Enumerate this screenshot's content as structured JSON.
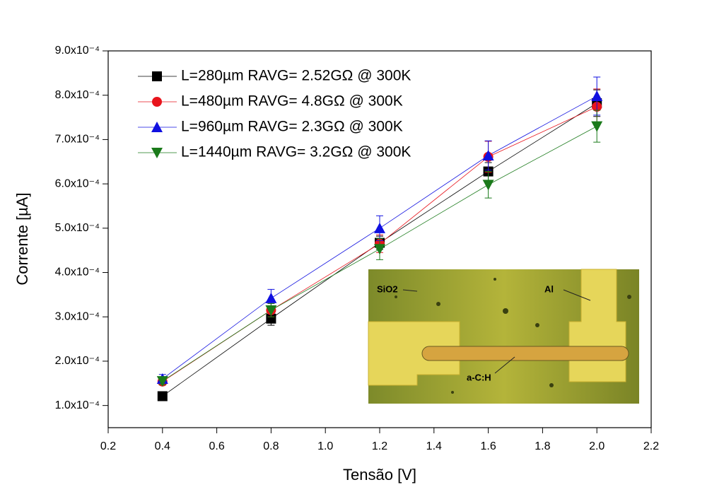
{
  "chart_data": {
    "type": "line",
    "xlabel": "Tensão [V]",
    "ylabel": "Corrente [µA]",
    "xlim": [
      0.2,
      2.2
    ],
    "xticks": [
      0.2,
      0.4,
      0.6,
      0.8,
      {
        "value": 1.0,
        "label": "1.0"
      },
      1.2,
      1.4,
      1.6,
      1.8,
      {
        "value": 2.0,
        "label": "2.0"
      },
      2.2
    ],
    "ylim": [
      5e-05,
      0.0009
    ],
    "yticks": [
      {
        "value": 0.0001,
        "label": "1.0x10⁻⁴"
      },
      {
        "value": 0.0002,
        "label": "2.0x10⁻⁴"
      },
      {
        "value": 0.0003,
        "label": "3.0x10⁻⁴"
      },
      {
        "value": 0.0004,
        "label": "4.0x10⁻⁴"
      },
      {
        "value": 0.0005,
        "label": "5.0x10⁻⁴"
      },
      {
        "value": 0.0006,
        "label": "6.0x10⁻⁴"
      },
      {
        "value": 0.0007,
        "label": "7.0x10⁻⁴"
      },
      {
        "value": 0.0008,
        "label": "8.0x10⁻⁴"
      },
      {
        "value": 0.0009,
        "label": "9.0x10⁻⁴"
      }
    ],
    "x": [
      0.4,
      0.8,
      1.2,
      1.6,
      2.0
    ],
    "legend": "upper left",
    "series": [
      {
        "name": "L=280µm RAVG= 2.52GΩ @ 300K",
        "color": "#000000",
        "marker": "square",
        "values": [
          0.000121,
          0.000296,
          0.000467,
          0.000628,
          0.000782
        ],
        "errors": [
          5e-06,
          1.5e-05,
          1.5e-05,
          2e-05,
          3e-05
        ]
      },
      {
        "name": "L=480µm RAVG= 4.8GΩ @ 300K",
        "color": "#e8141c",
        "marker": "circle",
        "values": [
          0.000154,
          0.000315,
          0.000465,
          0.000661,
          0.000774
        ],
        "errors": [
          8e-06,
          1.5e-05,
          2e-05,
          3.5e-05,
          4e-05
        ]
      },
      {
        "name": "L=960µm RAVG= 2.3GΩ @ 300K",
        "color": "#1010e0",
        "marker": "triangle-up",
        "values": [
          0.00016,
          0.000342,
          0.0005,
          0.000664,
          0.000798
        ],
        "errors": [
          1e-05,
          2e-05,
          2.8e-05,
          3.3e-05,
          4.3e-05
        ]
      },
      {
        "name": "L=1440µm RAVG= 3.2GΩ @ 300K",
        "color": "#1a7a1a",
        "marker": "triangle-down",
        "values": [
          0.000155,
          0.000315,
          0.000453,
          0.000598,
          0.00073
        ],
        "errors": [
          8e-06,
          1.5e-05,
          2.4e-05,
          3e-05,
          3.6e-05
        ]
      }
    ],
    "inset": {
      "labels": [
        "SiO2",
        "Al",
        "a-C:H"
      ]
    }
  }
}
